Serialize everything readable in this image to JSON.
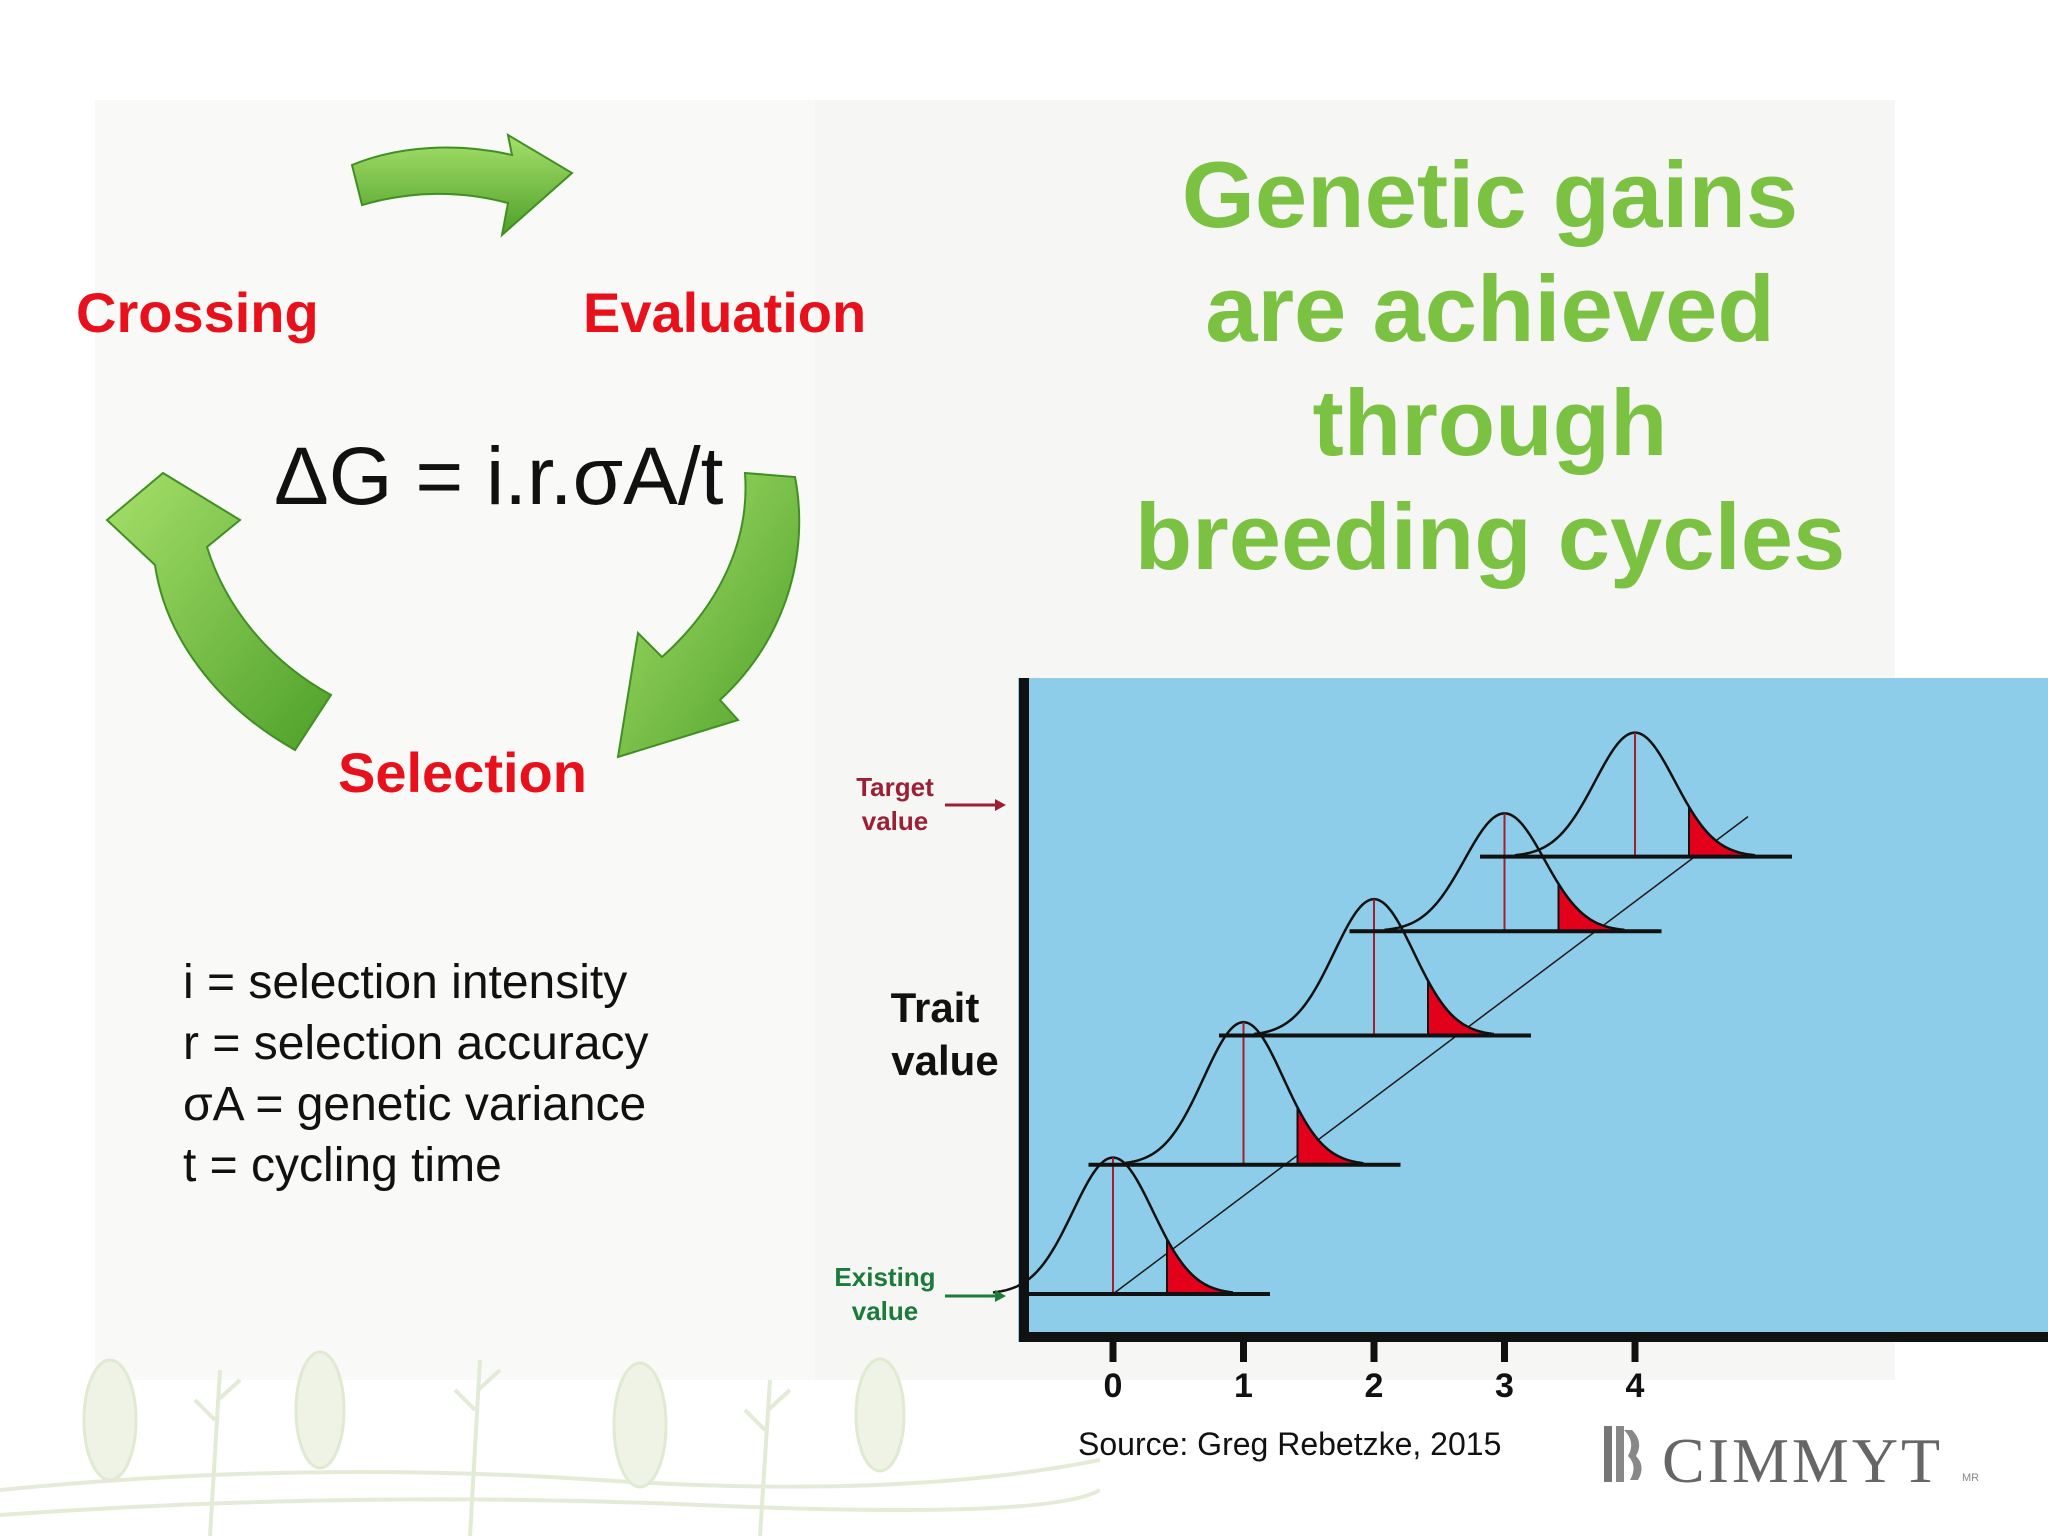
{
  "cycle": {
    "crossing": "Crossing",
    "evaluation": "Evaluation",
    "selection": "Selection",
    "formula": "ΔG = i.r.σA/t",
    "arrow_color": "#6abf3a"
  },
  "legend": [
    "i = selection intensity",
    "r = selection accuracy",
    "σA = genetic variance",
    "t = cycling time"
  ],
  "headline": [
    "Genetic gains",
    "are achieved",
    "through",
    "breeding cycles"
  ],
  "headline_color": "#7cc242",
  "chart": {
    "background": "#8ecde9",
    "target_label": [
      "Target",
      "value"
    ],
    "existing_label": [
      "Existing",
      "value"
    ],
    "ylabel": [
      "Trait",
      "value"
    ],
    "x_ticks": [
      "0",
      "1",
      "2",
      "3",
      "4"
    ],
    "target_color": "#9b2035",
    "existing_color": "#1b7b3a",
    "selected_tail_color": "#e2001a"
  },
  "chart_data": {
    "type": "line",
    "xlabel": "",
    "ylabel": "Trait value",
    "x": [
      0,
      1,
      2,
      3,
      4
    ],
    "mean_trait_level": [
      0,
      0.26,
      0.52,
      0.73,
      0.88
    ],
    "peak_height": [
      0.22,
      0.23,
      0.22,
      0.19,
      0.2
    ],
    "selected_tail_fraction": [
      0.2,
      0.2,
      0.2,
      0.2,
      0.2
    ]
  },
  "source": "Source: Greg Rebetzke, 2015",
  "logo": {
    "text": "CIMMYT",
    "mark": "MR"
  }
}
